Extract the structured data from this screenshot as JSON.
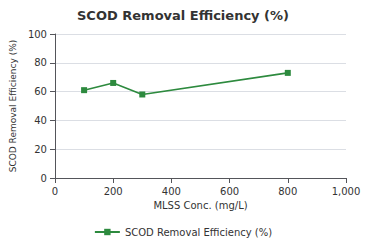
{
  "chart_data": {
    "type": "line",
    "title": "SCOD Removal Efficiency (%)",
    "xlabel": "MLSS Conc. (mg/L)",
    "ylabel": "SCOD Removal Efficiency (%)",
    "x": [
      100,
      200,
      300,
      800
    ],
    "series": [
      {
        "name": "SCOD Removal Efficiency (%)",
        "color": "#2d8a3e",
        "values": [
          61,
          66,
          58,
          73
        ],
        "marker": "square"
      }
    ],
    "xlim": [
      0,
      1000
    ],
    "ylim": [
      0,
      100
    ],
    "xticks": [
      0,
      200,
      400,
      600,
      800,
      1000
    ],
    "yticks": [
      0,
      20,
      40,
      60,
      80,
      100
    ],
    "grid": true,
    "legend": "bottom"
  }
}
